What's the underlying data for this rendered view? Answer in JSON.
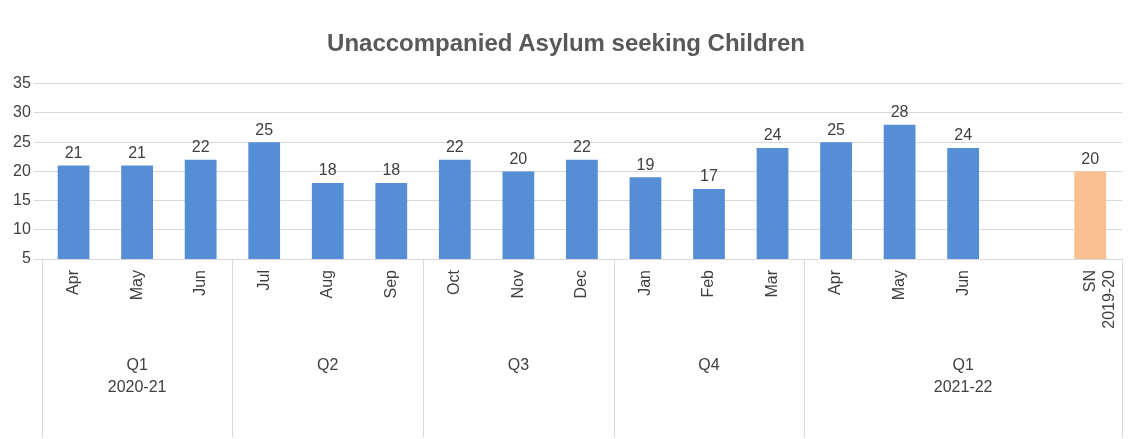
{
  "chart_data": {
    "type": "bar",
    "title": "Unaccompanied Asylum seeking Children",
    "categories": [
      "Apr",
      "May",
      "Jun",
      "Jul",
      "Aug",
      "Sep",
      "Oct",
      "Nov",
      "Dec",
      "Jan",
      "Feb",
      "Mar",
      "Apr",
      "May",
      "Jun",
      null,
      "SN 2019-20"
    ],
    "values": [
      21,
      21,
      22,
      25,
      18,
      18,
      22,
      20,
      22,
      19,
      17,
      24,
      25,
      28,
      24,
      null,
      20
    ],
    "colors": [
      "#558ed5",
      "#558ed5",
      "#558ed5",
      "#558ed5",
      "#558ed5",
      "#558ed5",
      "#558ed5",
      "#558ed5",
      "#558ed5",
      "#558ed5",
      "#558ed5",
      "#558ed5",
      "#558ed5",
      "#558ed5",
      "#558ed5",
      "#558ed5",
      "#fac090"
    ],
    "ylim": [
      5,
      35
    ],
    "yticks": [
      5,
      10,
      15,
      20,
      25,
      30,
      35
    ],
    "grid": "y",
    "legend": false,
    "data_labels": true,
    "annotations": [
      "Q1\n2020-21",
      "Q2",
      "Q3",
      "Q4",
      "Q1\n2021-22"
    ]
  }
}
